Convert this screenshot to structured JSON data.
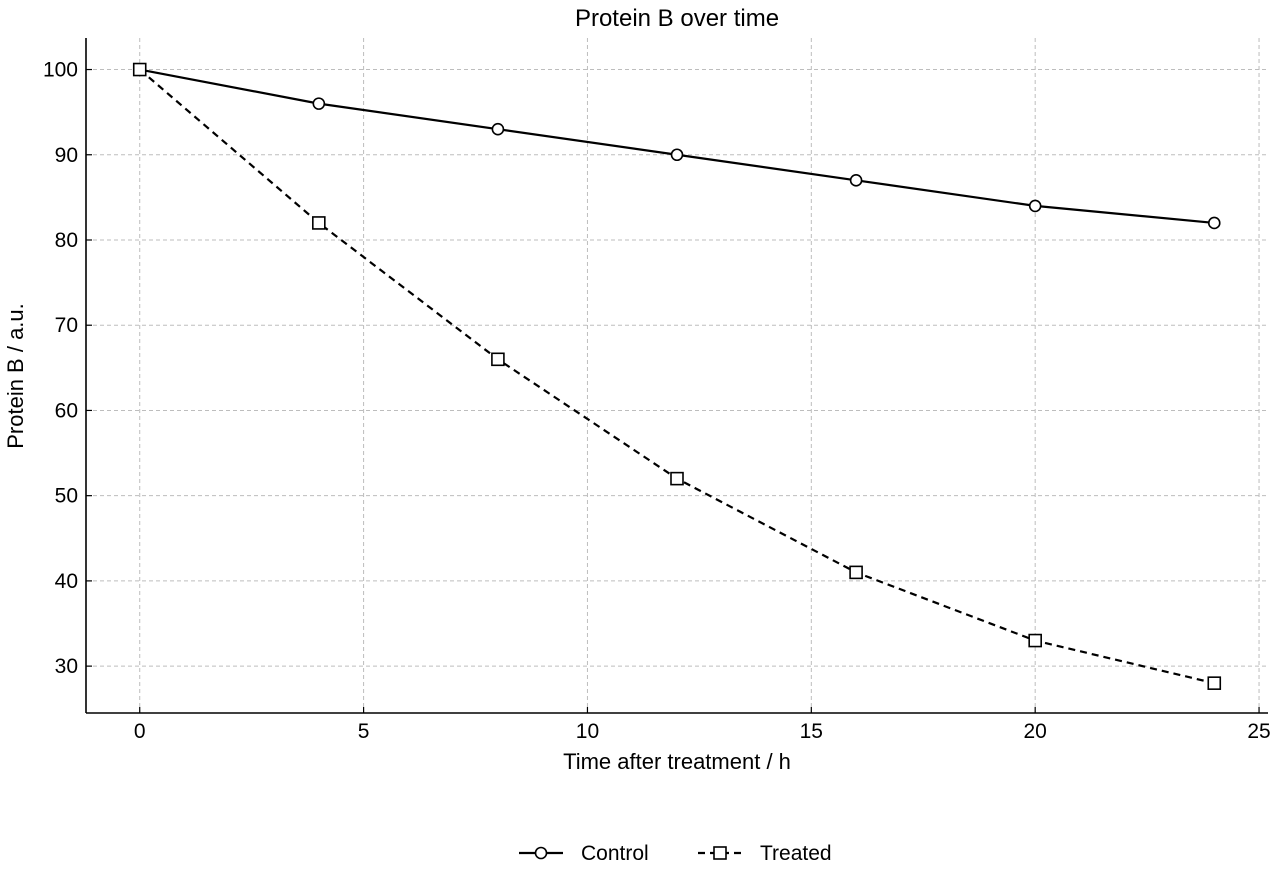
{
  "chart_data": {
    "type": "line",
    "title": "Protein B over time",
    "xlabel": "Time after treatment / h",
    "ylabel": "Protein B / a.u.",
    "xlim": [
      -1.2,
      25.2
    ],
    "ylim": [
      24.5,
      103.7
    ],
    "xticks": [
      0,
      5,
      10,
      15,
      20,
      25
    ],
    "yticks": [
      30,
      40,
      50,
      60,
      70,
      80,
      90,
      100
    ],
    "grid": true,
    "legend_position": "bottom-center",
    "x": [
      0,
      4,
      8,
      12,
      16,
      20,
      24
    ],
    "series": [
      {
        "name": "Control",
        "values": [
          100,
          96,
          93,
          90,
          87,
          84,
          82
        ],
        "marker": "circle",
        "line_style": "solid",
        "color": "#000000"
      },
      {
        "name": "Treated",
        "values": [
          100,
          82,
          66,
          52,
          41,
          33,
          28
        ],
        "marker": "square",
        "line_style": "dashed",
        "color": "#000000"
      }
    ]
  }
}
